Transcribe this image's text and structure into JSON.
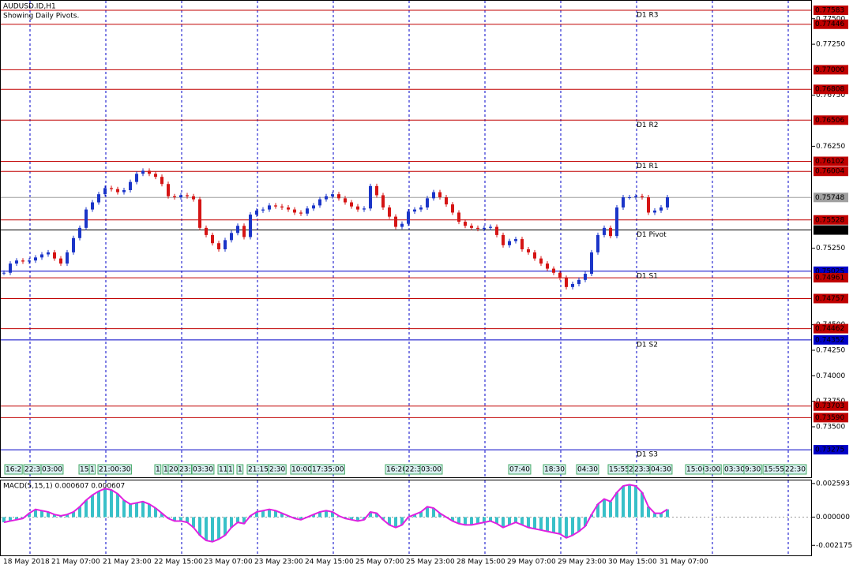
{
  "chart_data": {
    "type": "candlestick",
    "title": "AUDUSD.ID,H1",
    "subtitle": "Showing Daily Pivots.",
    "up_color": "#1b35c8",
    "down_color": "#d51414",
    "ylim": [
      0.73005,
      0.77676
    ],
    "yticks": [
      {
        "value": 0.775,
        "label": "0.77500"
      },
      {
        "value": 0.7725,
        "label": "0.77250"
      },
      {
        "value": 0.7675,
        "label": "0.76750"
      },
      {
        "value": 0.7625,
        "label": "0.76250"
      },
      {
        "value": 0.7525,
        "label": "0.75250"
      },
      {
        "value": 0.745,
        "label": "0.74500"
      },
      {
        "value": 0.7425,
        "label": "0.74250"
      },
      {
        "value": 0.74,
        "label": "0.74000"
      },
      {
        "value": 0.7375,
        "label": "0.73750"
      },
      {
        "value": 0.735,
        "label": "0.73500"
      }
    ],
    "levels": [
      {
        "value": 0.77583,
        "label": "0.77583",
        "color": "#c00000",
        "name": "D1 R3"
      },
      {
        "value": 0.77446,
        "label": "0.77446",
        "color": "#c00000"
      },
      {
        "value": 0.77,
        "label": "0.77000",
        "color": "#c00000"
      },
      {
        "value": 0.76808,
        "label": "0.76808",
        "color": "#c00000"
      },
      {
        "value": 0.76506,
        "label": "0.76506",
        "color": "#c00000",
        "name": "D1 R2"
      },
      {
        "value": 0.76102,
        "label": "0.76102",
        "color": "#c00000",
        "name": "D1 R1"
      },
      {
        "value": 0.76004,
        "label": "0.76004",
        "color": "#c00000"
      },
      {
        "value": 0.75748,
        "label": "0.75748",
        "color": "#a0a0a0"
      },
      {
        "value": 0.75528,
        "label": "0.75528",
        "color": "#c00000"
      },
      {
        "value": 0.75429,
        "label": "0.75429",
        "color": "#000000",
        "name": "D1 Pivot"
      },
      {
        "value": 0.75025,
        "label": "0.75025",
        "color": "#0000c8",
        "name": "D1 S1"
      },
      {
        "value": 0.74961,
        "label": "0.74961",
        "color": "#c00000"
      },
      {
        "value": 0.74757,
        "label": "0.74757",
        "color": "#c00000"
      },
      {
        "value": 0.74462,
        "label": "0.74462",
        "color": "#c00000"
      },
      {
        "value": 0.74352,
        "label": "0.74352",
        "color": "#0000c8",
        "name": "D1 S2"
      },
      {
        "value": 0.73703,
        "label": "0.73703",
        "color": "#c00000"
      },
      {
        "value": 0.7359,
        "label": "0.73590",
        "color": "#c00000"
      },
      {
        "value": 0.73275,
        "label": "0.73275",
        "color": "#0000c8",
        "name": "D1 S3"
      }
    ],
    "values": [
      0.7501,
      0.751,
      0.7513,
      0.7512,
      0.7513,
      0.7516,
      0.7519,
      0.7521,
      0.7515,
      0.751,
      0.7521,
      0.7535,
      0.7545,
      0.7563,
      0.757,
      0.7578,
      0.7584,
      0.7583,
      0.758,
      0.7582,
      0.759,
      0.7598,
      0.7601,
      0.7598,
      0.7595,
      0.7588,
      0.7576,
      0.7575,
      0.7577,
      0.7576,
      0.7573,
      0.7545,
      0.7538,
      0.753,
      0.7524,
      0.7533,
      0.754,
      0.7547,
      0.7536,
      0.7558,
      0.7562,
      0.7563,
      0.7567,
      0.7566,
      0.7565,
      0.7563,
      0.756,
      0.7559,
      0.7564,
      0.7567,
      0.7573,
      0.7576,
      0.7578,
      0.7574,
      0.757,
      0.7566,
      0.7563,
      0.7564,
      0.7586,
      0.7577,
      0.7565,
      0.7556,
      0.7546,
      0.7549,
      0.7561,
      0.7563,
      0.7565,
      0.7574,
      0.758,
      0.7575,
      0.7568,
      0.756,
      0.7551,
      0.7547,
      0.7545,
      0.7544,
      0.7545,
      0.7546,
      0.7538,
      0.7528,
      0.7532,
      0.7534,
      0.7524,
      0.7521,
      0.7515,
      0.751,
      0.7505,
      0.7501,
      0.7496,
      0.7487,
      0.749,
      0.7494,
      0.75,
      0.7521,
      0.7538,
      0.7545,
      0.7537,
      0.7565,
      0.7575,
      0.7575,
      0.7576,
      0.7575,
      0.756,
      0.7562,
      0.7565,
      0.7575
    ],
    "time_labels": [
      "18 May 2018",
      "21 May 07:00",
      "21 May 23:00",
      "22 May 15:00",
      "23 May 07:00",
      "23 May 23:00",
      "24 May 15:00",
      "25 May 07:00",
      "25 May 23:00",
      "28 May 15:00",
      "29 May 07:00",
      "29 May 23:00",
      "30 May 15:00",
      "31 May 07:00"
    ],
    "session_labels": [
      "16:2",
      "22:3",
      "03:00",
      "15",
      "1",
      "21:00:30",
      "1",
      "1",
      "20",
      "23:",
      "03:30",
      "11",
      "1",
      "1",
      "21:15",
      "2:30",
      "10:00",
      "17:35:00",
      "16:20",
      "22:3",
      "03:00",
      "07:40",
      "18:30",
      "04:30",
      "15:55",
      "2",
      "23:3",
      "04:30",
      "15:00",
      "3:00",
      "03:30",
      "9:30",
      "15:55",
      "22:30"
    ],
    "macd": {
      "title": "MACD(5,15,1) 0.000607 0.000607",
      "color": "#38c0c8",
      "line_color": "#e020e0",
      "ylim": [
        -0.00295,
        0.00283
      ],
      "yticks": [
        {
          "value": 0.002593,
          "label": "0.002593"
        },
        {
          "value": 0,
          "label": "0.000000"
        },
        {
          "value": -0.002175,
          "label": "-0.002175"
        }
      ],
      "values": [
        -0.0004,
        -0.0003,
        -0.0002,
        -0.0001,
        0.0003,
        0.0006,
        0.0005,
        0.0004,
        0.0002,
        0.0001,
        0.0002,
        0.0004,
        0.0008,
        0.0013,
        0.0017,
        0.002,
        0.0022,
        0.0021,
        0.0018,
        0.0013,
        0.001,
        0.0011,
        0.0012,
        0.001,
        0.0007,
        0.0003,
        -0.0001,
        -0.0003,
        -0.0003,
        -0.0004,
        -0.0008,
        -0.0014,
        -0.0018,
        -0.0019,
        -0.0017,
        -0.0014,
        -0.0008,
        -0.0004,
        -0.0005,
        0.0001,
        0.0004,
        0.0005,
        0.0006,
        0.0005,
        0.0003,
        0.0001,
        -0.0001,
        -0.0002,
        0.0,
        0.0002,
        0.0004,
        0.0005,
        0.0004,
        0.0001,
        -0.0001,
        -0.0002,
        -0.0003,
        -0.0002,
        0.0004,
        0.0003,
        -0.0002,
        -0.0006,
        -0.0008,
        -0.0006,
        0.0,
        0.0002,
        0.0004,
        0.0008,
        0.0007,
        0.0003,
        0.0,
        -0.0003,
        -0.0005,
        -0.0006,
        -0.0006,
        -0.0005,
        -0.0004,
        -0.0003,
        -0.0005,
        -0.0008,
        -0.0006,
        -0.0004,
        -0.0006,
        -0.0008,
        -0.0009,
        -0.001,
        -0.0011,
        -0.0012,
        -0.0013,
        -0.0016,
        -0.0014,
        -0.0011,
        -0.0007,
        0.0002,
        0.001,
        0.0014,
        0.0012,
        0.0019,
        0.0024,
        0.0025,
        0.0024,
        0.0019,
        0.0008,
        0.0003,
        0.0003,
        0.0006
      ]
    }
  }
}
